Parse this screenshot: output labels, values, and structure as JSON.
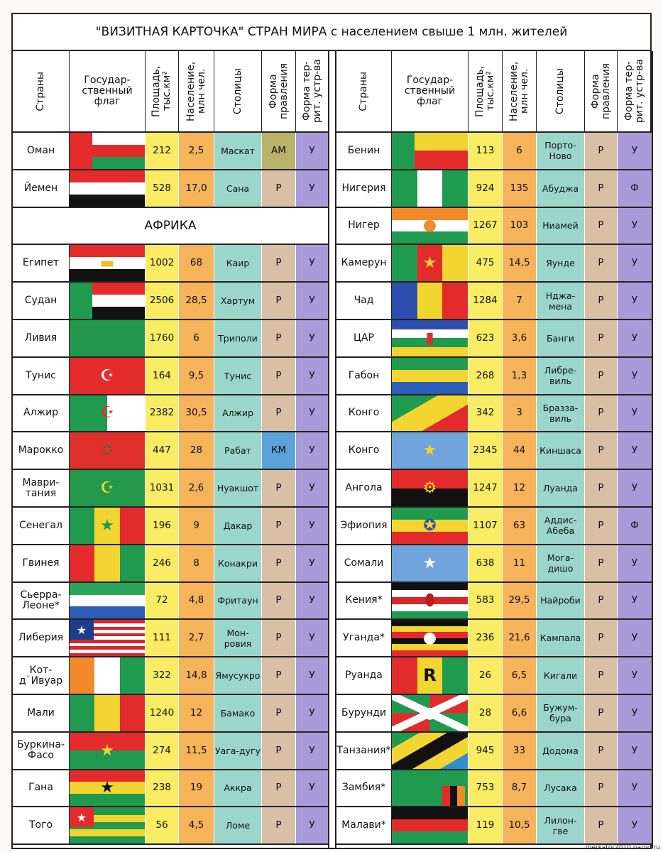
{
  "title": "\"ВИЗИТНАЯ КАРТОЧКА\" СТРАН МИРА с населением свыше 1 млн. жителей",
  "headers": [
    "Страны",
    "Государ-ственный флаг",
    "Площадь, тыс.км²",
    "Население, млн чел.",
    "Столицы",
    "Форма правления",
    "Форма тер-рит. устр-ва"
  ],
  "section_africa": "АФРИКА",
  "watermark": "merkator2010.narod.ru",
  "colors": {
    "form_am": "#b9b26b",
    "form_km": "#5aa2da"
  },
  "left_rows_top": [
    {
      "country": "Оман",
      "area": "212",
      "pop": "2,5",
      "capital": "Маскат",
      "form": "АМ",
      "terr": "У",
      "flag": {
        "k": "h",
        "s": [
          "#fff",
          "#e32b2b",
          "#1f9a4f"
        ],
        "hoist": "#e32b2b"
      }
    },
    {
      "country": "Йемен",
      "area": "528",
      "pop": "17,0",
      "capital": "Сана",
      "form": "Р",
      "terr": "У",
      "flag": {
        "k": "h",
        "s": [
          "#e32b2b",
          "#fff",
          "#111"
        ]
      }
    }
  ],
  "left_rows": [
    {
      "country": "Египет",
      "area": "1002",
      "pop": "68",
      "capital": "Каир",
      "form": "Р",
      "terr": "У",
      "flag": {
        "k": "h",
        "s": [
          "#e32b2b",
          "#fff",
          "#111"
        ],
        "e": "▬",
        "ec": "#e6c229"
      }
    },
    {
      "country": "Судан",
      "area": "2506",
      "pop": "28,5",
      "capital": "Хартум",
      "form": "Р",
      "terr": "У",
      "flag": {
        "k": "h",
        "s": [
          "#e32b2b",
          "#fff",
          "#111"
        ],
        "hoist": "#1f9a4f"
      }
    },
    {
      "country": "Ливия",
      "area": "1760",
      "pop": "6",
      "capital": "Триполи",
      "form": "Р",
      "terr": "У",
      "flag": {
        "k": "h",
        "s": [
          "#22964a"
        ]
      }
    },
    {
      "country": "Тунис",
      "area": "164",
      "pop": "9,5",
      "capital": "Тунис",
      "form": "Р",
      "terr": "У",
      "flag": {
        "k": "h",
        "s": [
          "#e32b2b"
        ],
        "e": "☪",
        "ec": "#fff"
      }
    },
    {
      "country": "Алжир",
      "area": "2382",
      "pop": "30,5",
      "capital": "Алжир",
      "form": "Р",
      "terr": "У",
      "flag": {
        "k": "v",
        "s": [
          "#1f9a4f",
          "#fff"
        ],
        "e": "☪",
        "ec": "#e32b2b"
      }
    },
    {
      "country": "Марокко",
      "area": "447",
      "pop": "28",
      "capital": "Рабат",
      "form": "КМ",
      "terr": "У",
      "flag": {
        "k": "h",
        "s": [
          "#e0302b"
        ],
        "e": "✩",
        "ec": "#1f7a3f"
      }
    },
    {
      "country": "Маври-тания",
      "area": "1031",
      "pop": "2,6",
      "capital": "Нуакшот",
      "form": "Р",
      "terr": "У",
      "flag": {
        "k": "h",
        "s": [
          "#23984b"
        ],
        "e": "☪",
        "ec": "#f2d531"
      }
    },
    {
      "country": "Сенегал",
      "area": "196",
      "pop": "9",
      "capital": "Дакар",
      "form": "Р",
      "terr": "У",
      "flag": {
        "k": "v",
        "s": [
          "#1f9a4f",
          "#f2d531",
          "#e32b2b"
        ],
        "e": "★",
        "ec": "#1f9a4f"
      }
    },
    {
      "country": "Гвинея",
      "area": "246",
      "pop": "8",
      "capital": "Конакри",
      "form": "Р",
      "terr": "У",
      "flag": {
        "k": "v",
        "s": [
          "#e32b2b",
          "#f2d531",
          "#1f9a4f"
        ]
      }
    },
    {
      "country": "Сьерра-Леоне*",
      "area": "72",
      "pop": "4,8",
      "capital": "Фритаун",
      "form": "Р",
      "terr": "У",
      "flag": {
        "k": "h",
        "s": [
          "#2aa65a",
          "#fff",
          "#2e5db8"
        ]
      }
    },
    {
      "country": "Либерия",
      "area": "111",
      "pop": "2,7",
      "capital": "Мон-ровия",
      "form": "Р",
      "terr": "У",
      "flag": {
        "k": "h",
        "s": [
          "#d8262b",
          "#fff",
          "#d8262b",
          "#fff",
          "#d8262b",
          "#fff",
          "#d8262b",
          "#fff",
          "#d8262b",
          "#fff",
          "#d8262b"
        ],
        "canton": "#1e3c8c",
        "ce": "★",
        "cec": "#fff"
      }
    },
    {
      "country": "Кот-д`Ивуар",
      "area": "322",
      "pop": "14,8",
      "capital": "Ямусукро",
      "form": "Р",
      "terr": "У",
      "flag": {
        "k": "v",
        "s": [
          "#f28a2a",
          "#fff",
          "#1f9a4f"
        ]
      }
    },
    {
      "country": "Мали",
      "area": "1240",
      "pop": "12",
      "capital": "Бамако",
      "form": "Р",
      "terr": "У",
      "flag": {
        "k": "v",
        "s": [
          "#1f9a4f",
          "#f2d531",
          "#e32b2b"
        ]
      }
    },
    {
      "country": "Буркина-Фасо",
      "area": "274",
      "pop": "11,5",
      "capital": "Уага-дугу",
      "form": "Р",
      "terr": "У",
      "flag": {
        "k": "h",
        "s": [
          "#e32b2b",
          "#1f9a4f"
        ],
        "e": "★",
        "ec": "#f2d531"
      }
    },
    {
      "country": "Гана",
      "area": "238",
      "pop": "19",
      "capital": "Аккра",
      "form": "Р",
      "terr": "У",
      "flag": {
        "k": "h",
        "s": [
          "#e32b2b",
          "#f2d531",
          "#1f9a4f"
        ],
        "e": "★",
        "ec": "#111"
      }
    },
    {
      "country": "Того",
      "area": "56",
      "pop": "4,5",
      "capital": "Ломе",
      "form": "Р",
      "terr": "У",
      "flag": {
        "k": "h",
        "s": [
          "#1f9a4f",
          "#f2d531",
          "#1f9a4f",
          "#f2d531",
          "#1f9a4f"
        ],
        "canton": "#e32b2b",
        "ce": "★",
        "cec": "#fff"
      }
    }
  ],
  "right_rows": [
    {
      "country": "Бенин",
      "area": "113",
      "pop": "6",
      "capital": "Порто-Ново",
      "form": "Р",
      "terr": "У",
      "flag": {
        "k": "h",
        "s": [
          "#f2d531",
          "#e32b2b"
        ],
        "hoist": "#1f9a4f"
      }
    },
    {
      "country": "Нигерия",
      "area": "924",
      "pop": "135",
      "capital": "Абуджа",
      "form": "Р",
      "terr": "Ф",
      "flag": {
        "k": "v",
        "s": [
          "#1f9a4f",
          "#fff",
          "#1f9a4f"
        ]
      }
    },
    {
      "country": "Нигер",
      "area": "1267",
      "pop": "103",
      "capital": "Ниамей",
      "form": "Р",
      "terr": "У",
      "flag": {
        "k": "h",
        "s": [
          "#f28a2a",
          "#fff",
          "#1f9a4f"
        ],
        "e": "●",
        "ec": "#f28a2a"
      }
    },
    {
      "country": "Камерун",
      "area": "475",
      "pop": "14,5",
      "capital": "Яунде",
      "form": "Р",
      "terr": "У",
      "flag": {
        "k": "v",
        "s": [
          "#1f9a4f",
          "#e32b2b",
          "#f2d531"
        ],
        "e": "★",
        "ec": "#f2d531"
      }
    },
    {
      "country": "Чад",
      "area": "1284",
      "pop": "7",
      "capital": "Нджа-мена",
      "form": "Р",
      "terr": "У",
      "flag": {
        "k": "v",
        "s": [
          "#2e4fb0",
          "#f2d531",
          "#e32b2b"
        ]
      }
    },
    {
      "country": "ЦАР",
      "area": "623",
      "pop": "3,6",
      "capital": "Банги",
      "form": "Р",
      "terr": "У",
      "flag": {
        "k": "h",
        "s": [
          "#2e4fb0",
          "#fff",
          "#1f9a4f",
          "#f2d531"
        ],
        "e": "▮",
        "ec": "#e32b2b"
      }
    },
    {
      "country": "Габон",
      "area": "268",
      "pop": "1,3",
      "capital": "Либре-виль",
      "form": "Р",
      "terr": "У",
      "flag": {
        "k": "h",
        "s": [
          "#1f9a4f",
          "#f2d531",
          "#2e5db8"
        ]
      }
    },
    {
      "country": "Конго",
      "area": "342",
      "pop": "3",
      "capital": "Бразза-виль",
      "form": "Р",
      "terr": "У",
      "flag": {
        "k": "d",
        "s": [
          "#1f9a4f",
          "#f2d531",
          "#e32b2b"
        ]
      }
    },
    {
      "country": "Конго",
      "area": "2345",
      "pop": "44",
      "capital": "Киншаса",
      "form": "Р",
      "terr": "У",
      "flag": {
        "k": "h",
        "s": [
          "#6fa4dc"
        ],
        "e": "★",
        "ec": "#f2d531"
      }
    },
    {
      "country": "Ангола",
      "area": "1247",
      "pop": "12",
      "capital": "Луанда",
      "form": "Р",
      "terr": "У",
      "flag": {
        "k": "h",
        "s": [
          "#e32b2b",
          "#111"
        ],
        "e": "⚙",
        "ec": "#f2d531"
      }
    },
    {
      "country": "Эфиопия",
      "area": "1107",
      "pop": "63",
      "capital": "Аддис-Абеба",
      "form": "Р",
      "terr": "Ф",
      "flag": {
        "k": "h",
        "s": [
          "#1f9a4f",
          "#f2d531",
          "#e32b2b"
        ],
        "e": "✪",
        "ec": "#2e4fb0"
      }
    },
    {
      "country": "Сомали",
      "area": "638",
      "pop": "11",
      "capital": "Мога-дишо",
      "form": "Р",
      "terr": "У",
      "flag": {
        "k": "h",
        "s": [
          "#6fa4dc"
        ],
        "e": "★",
        "ec": "#fff"
      }
    },
    {
      "country": "Кения*",
      "area": "583",
      "pop": "29,5",
      "capital": "Найроби",
      "form": "Р",
      "terr": "У",
      "flag": {
        "k": "h",
        "s": [
          "#111",
          "#fff",
          "#d8262b",
          "#fff",
          "#1f9a4f"
        ],
        "e": "⬮",
        "ec": "#b81e1e"
      }
    },
    {
      "country": "Уганда*",
      "area": "236",
      "pop": "21,6",
      "capital": "Кампала",
      "form": "Р",
      "terr": "У",
      "flag": {
        "k": "h",
        "s": [
          "#111",
          "#f2d531",
          "#e32b2b",
          "#111",
          "#f2d531",
          "#e32b2b"
        ],
        "e": "●",
        "ec": "#fff"
      }
    },
    {
      "country": "Руанда",
      "area": "26",
      "pop": "6,5",
      "capital": "Кигали",
      "form": "Р",
      "terr": "У",
      "flag": {
        "k": "v",
        "s": [
          "#e32b2b",
          "#f2d531",
          "#1f9a4f"
        ],
        "e": "R",
        "ec": "#111"
      }
    },
    {
      "country": "Бурунди",
      "area": "28",
      "pop": "6,6",
      "capital": "Бужум-бура",
      "form": "Р",
      "terr": "У",
      "flag": {
        "k": "x",
        "s": [
          "#e32b2b",
          "#1f9a4f"
        ],
        "e": "●",
        "ec": "#fff"
      }
    },
    {
      "country": "Танзания*",
      "area": "945",
      "pop": "33",
      "capital": "Додома",
      "form": "Р",
      "terr": "У",
      "flag": {
        "k": "d",
        "s": [
          "#1f9a4f",
          "#f2d531",
          "#111",
          "#f2d531",
          "#2e8fd0"
        ]
      }
    },
    {
      "country": "Замбия*",
      "area": "753",
      "pop": "8,7",
      "capital": "Лусака",
      "form": "Р",
      "terr": "У",
      "flag": {
        "k": "h",
        "s": [
          "#1f9a4f"
        ],
        "fly": [
          "#e32b2b",
          "#111",
          "#f28a2a"
        ]
      }
    },
    {
      "country": "Малави*",
      "area": "119",
      "pop": "10,5",
      "capital": "Лилон-гве",
      "form": "Р",
      "terr": "У",
      "flag": {
        "k": "h",
        "s": [
          "#111",
          "#e32b2b",
          "#1f9a4f"
        ]
      }
    }
  ]
}
